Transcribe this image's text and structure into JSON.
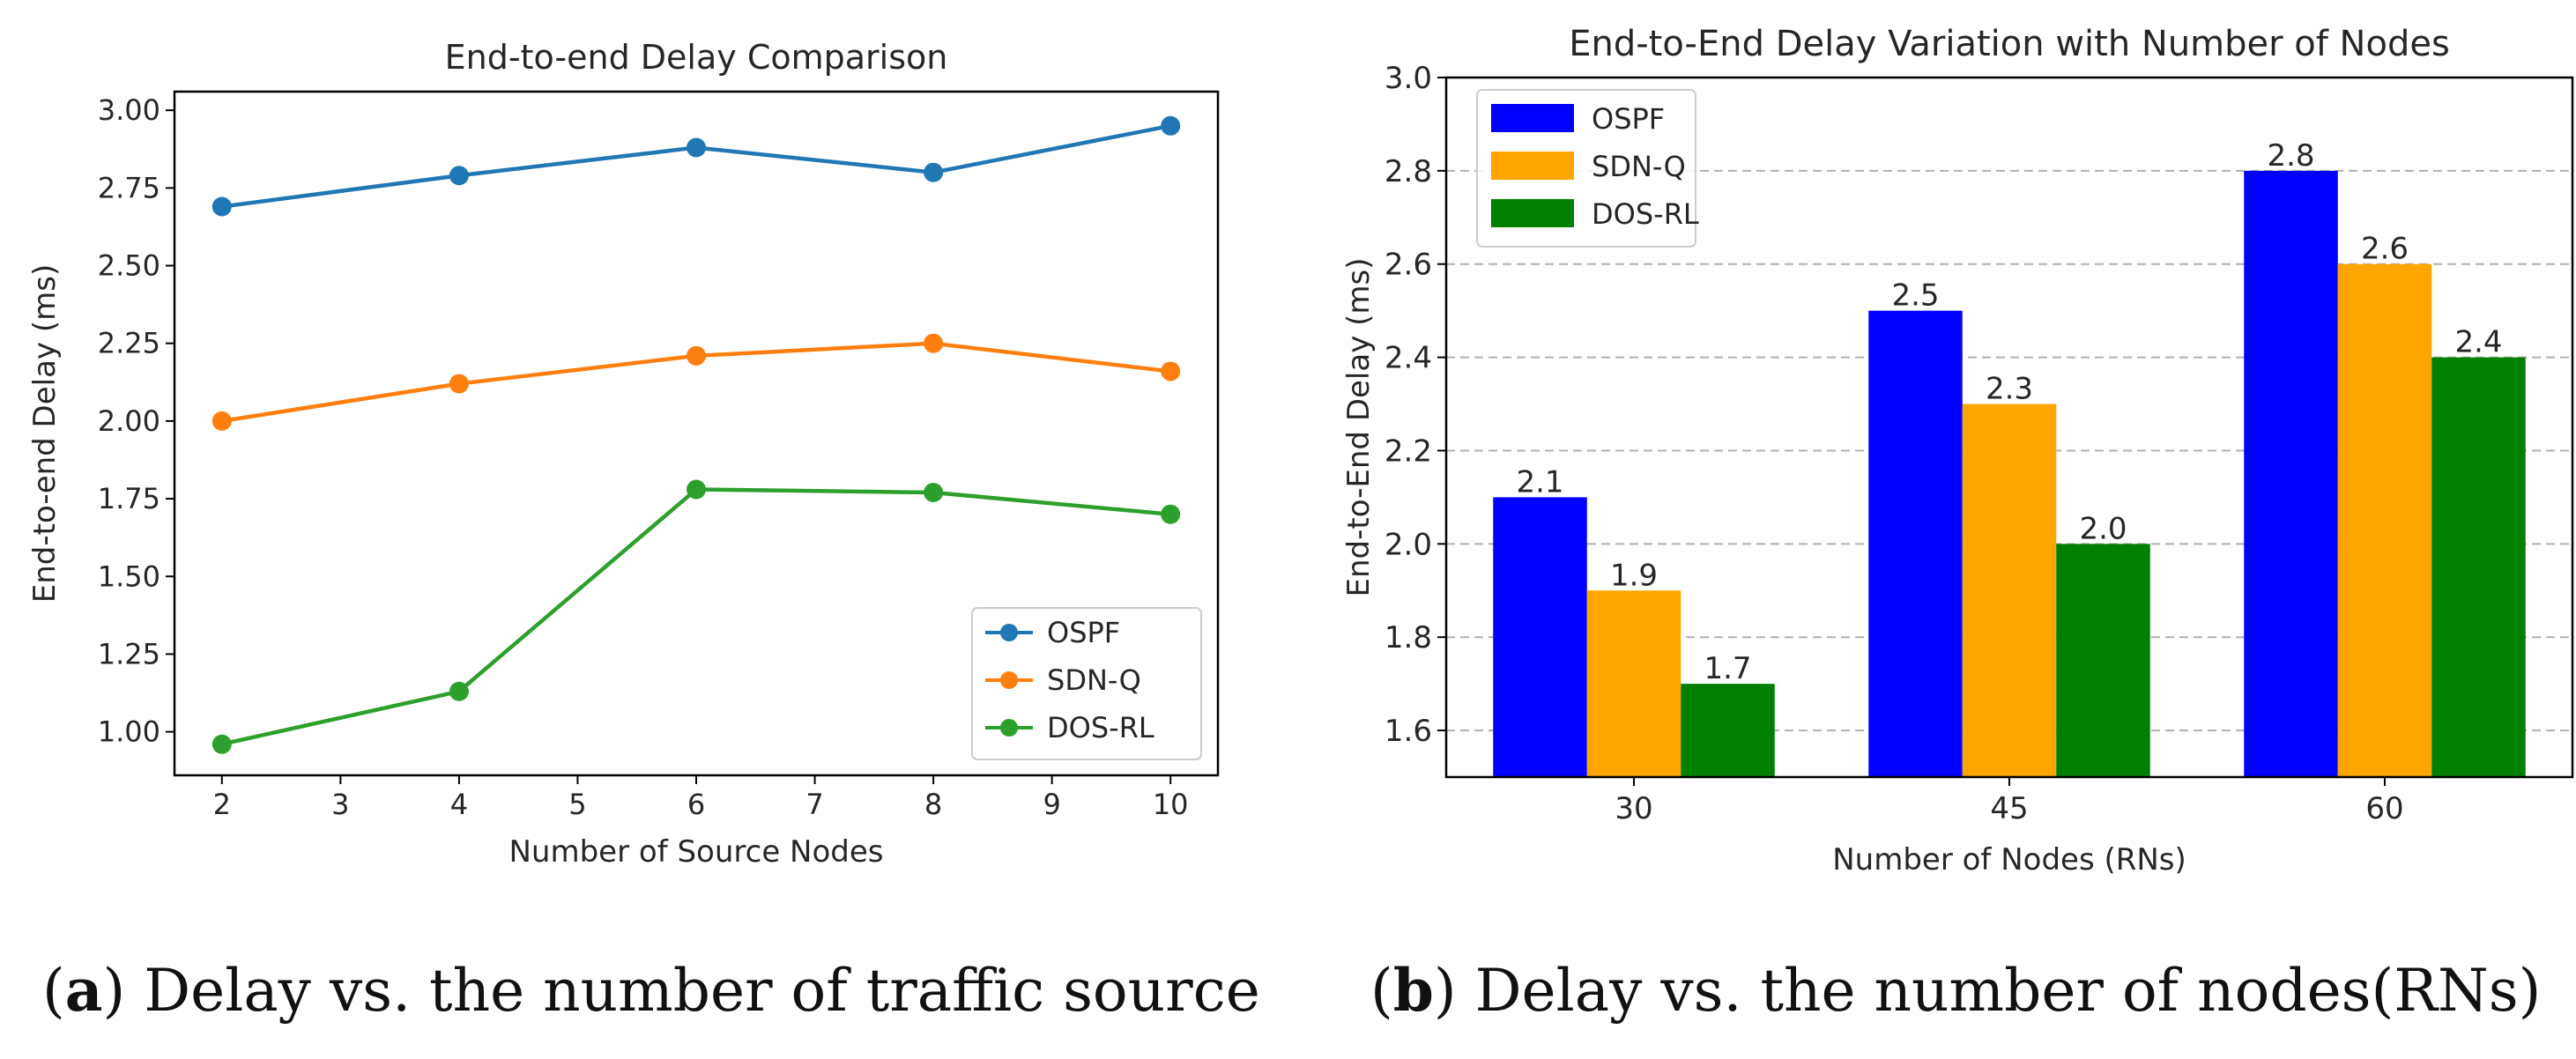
{
  "colors": {
    "ospf_line": "#1f77b4",
    "sdnq_line": "#ff7f0e",
    "dosrl_line": "#2ca02c",
    "ospf_bar": "#0000ff",
    "sdnq_bar": "#ffa500",
    "dosrl_bar": "#008000"
  },
  "chart_data": [
    {
      "type": "line",
      "title": "End-to-end Delay Comparison",
      "xlabel": "Number of Source Nodes",
      "ylabel": "End-to-end Delay (ms)",
      "x": [
        2,
        4,
        6,
        8,
        10
      ],
      "xlim": [
        1.6,
        10.4
      ],
      "ylim": [
        0.86,
        3.06
      ],
      "xticks": [
        2,
        3,
        4,
        5,
        6,
        7,
        8,
        9,
        10
      ],
      "yticks": [
        1.0,
        1.25,
        1.5,
        1.75,
        2.0,
        2.25,
        2.5,
        2.75,
        3.0
      ],
      "ytick_labels": [
        "1.00",
        "1.25",
        "1.50",
        "1.75",
        "2.00",
        "2.25",
        "2.50",
        "2.75",
        "3.00"
      ],
      "grid": false,
      "legend_position": "lower-right",
      "series": [
        {
          "name": "OSPF",
          "values": [
            2.69,
            2.79,
            2.88,
            2.8,
            2.95
          ]
        },
        {
          "name": "SDN-Q",
          "values": [
            2.0,
            2.12,
            2.21,
            2.25,
            2.16
          ]
        },
        {
          "name": "DOS-RL",
          "values": [
            0.96,
            1.13,
            1.78,
            1.77,
            1.7
          ]
        }
      ],
      "caption": {
        "label": "a",
        "text": ") Delay vs. the number of traffic source"
      }
    },
    {
      "type": "bar",
      "title": "End-to-End Delay Variation with Number of Nodes",
      "xlabel": "Number of Nodes (RNs)",
      "ylabel": "End-to-End Delay (ms)",
      "categories": [
        "30",
        "45",
        "60"
      ],
      "ylim": [
        1.5,
        3.0
      ],
      "yticks": [
        1.6,
        1.8,
        2.0,
        2.2,
        2.4,
        2.6,
        2.8,
        3.0
      ],
      "ytick_labels": [
        "1.6",
        "1.8",
        "2.0",
        "2.2",
        "2.4",
        "2.6",
        "2.8",
        "3.0"
      ],
      "grid": "y-dashed",
      "legend_position": "top-left",
      "series": [
        {
          "name": "OSPF",
          "values": [
            2.1,
            2.5,
            2.8
          ],
          "labels": [
            "2.1",
            "2.5",
            "2.8"
          ]
        },
        {
          "name": "SDN-Q",
          "values": [
            1.9,
            2.3,
            2.6
          ],
          "labels": [
            "1.9",
            "2.3",
            "2.6"
          ]
        },
        {
          "name": "DOS-RL",
          "values": [
            1.7,
            2.0,
            2.4
          ],
          "labels": [
            "1.7",
            "2.0",
            "2.4"
          ]
        }
      ],
      "caption": {
        "label": "b",
        "text": ") Delay vs. the number of nodes(RNs)"
      }
    }
  ]
}
